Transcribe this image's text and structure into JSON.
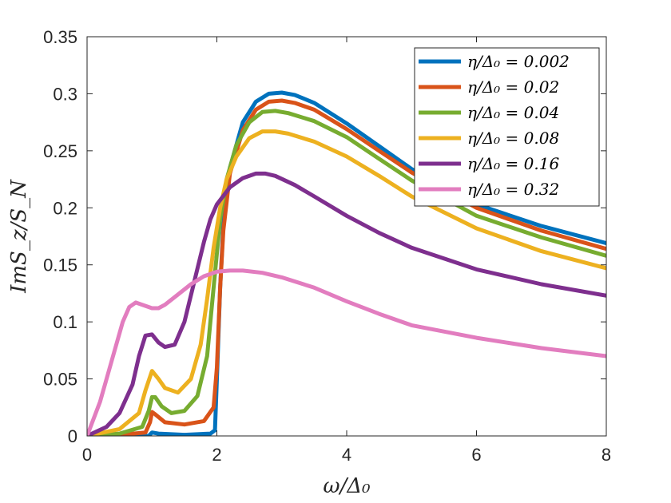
{
  "chart_data": {
    "type": "line",
    "title": "",
    "xlabel": "ω/Δ₀",
    "ylabel": "ImS_z/S_N",
    "xlim": [
      0,
      8
    ],
    "ylim": [
      0,
      0.35
    ],
    "xticks": [
      0,
      2,
      4,
      6,
      8
    ],
    "xtick_labels": [
      "0",
      "2",
      "4",
      "6",
      "8"
    ],
    "yticks": [
      0,
      0.05,
      0.1,
      0.15,
      0.2,
      0.25,
      0.3,
      0.35
    ],
    "ytick_labels": [
      "0",
      "0.05",
      "0.1",
      "0.15",
      "0.2",
      "0.25",
      "0.3",
      "0.35"
    ],
    "grid": false,
    "legend_position": "top-right",
    "series": [
      {
        "name": "η/Δ₀ = 0.002",
        "color": "#0072BD",
        "x": [
          0,
          0.5,
          0.95,
          1.0,
          1.1,
          1.5,
          1.9,
          1.97,
          2.0,
          2.05,
          2.1,
          2.2,
          2.4,
          2.6,
          2.8,
          3.0,
          3.2,
          3.5,
          4.0,
          4.5,
          5.0,
          6.0,
          7.0,
          8.0
        ],
        "y": [
          0,
          0,
          0,
          0.003,
          0.002,
          0.001,
          0.002,
          0.005,
          0.05,
          0.13,
          0.185,
          0.235,
          0.275,
          0.293,
          0.3,
          0.301,
          0.299,
          0.292,
          0.274,
          0.254,
          0.234,
          0.203,
          0.184,
          0.169
        ]
      },
      {
        "name": "η/Δ₀ = 0.02",
        "color": "#D95319",
        "x": [
          0,
          0.5,
          0.9,
          0.97,
          1.0,
          1.05,
          1.2,
          1.5,
          1.8,
          1.95,
          2.0,
          2.05,
          2.1,
          2.2,
          2.4,
          2.6,
          2.8,
          3.0,
          3.2,
          3.5,
          4.0,
          4.5,
          5.0,
          6.0,
          7.0,
          8.0
        ],
        "y": [
          0,
          0.001,
          0.003,
          0.012,
          0.021,
          0.019,
          0.012,
          0.01,
          0.013,
          0.025,
          0.06,
          0.13,
          0.18,
          0.23,
          0.268,
          0.286,
          0.293,
          0.294,
          0.292,
          0.286,
          0.269,
          0.25,
          0.231,
          0.2,
          0.18,
          0.164
        ]
      },
      {
        "name": "η/Δ₀ = 0.04",
        "color": "#77AC30",
        "x": [
          0,
          0.5,
          0.85,
          0.95,
          1.0,
          1.05,
          1.15,
          1.3,
          1.5,
          1.7,
          1.85,
          1.95,
          2.05,
          2.15,
          2.3,
          2.5,
          2.7,
          2.9,
          3.1,
          3.5,
          4.0,
          4.5,
          5.0,
          6.0,
          7.0,
          8.0
        ],
        "y": [
          0,
          0.002,
          0.008,
          0.022,
          0.034,
          0.034,
          0.026,
          0.02,
          0.022,
          0.035,
          0.07,
          0.13,
          0.19,
          0.225,
          0.255,
          0.275,
          0.284,
          0.285,
          0.283,
          0.276,
          0.262,
          0.243,
          0.224,
          0.193,
          0.174,
          0.158
        ]
      },
      {
        "name": "η/Δ₀ = 0.08",
        "color": "#EDB120",
        "x": [
          0,
          0.5,
          0.8,
          0.9,
          1.0,
          1.1,
          1.2,
          1.4,
          1.6,
          1.75,
          1.85,
          1.95,
          2.05,
          2.15,
          2.3,
          2.5,
          2.7,
          2.9,
          3.1,
          3.5,
          4.0,
          4.5,
          5.0,
          6.0,
          7.0,
          8.0
        ],
        "y": [
          0,
          0.006,
          0.02,
          0.04,
          0.057,
          0.05,
          0.042,
          0.038,
          0.05,
          0.08,
          0.12,
          0.165,
          0.2,
          0.225,
          0.245,
          0.261,
          0.267,
          0.267,
          0.265,
          0.258,
          0.245,
          0.228,
          0.21,
          0.182,
          0.162,
          0.147
        ]
      },
      {
        "name": "η/Δ₀ = 0.16",
        "color": "#7E2F8E",
        "x": [
          0,
          0.3,
          0.5,
          0.7,
          0.8,
          0.9,
          1.0,
          1.1,
          1.2,
          1.35,
          1.5,
          1.65,
          1.8,
          1.9,
          2.0,
          2.2,
          2.4,
          2.6,
          2.75,
          2.9,
          3.2,
          3.5,
          4.0,
          4.5,
          5.0,
          6.0,
          7.0,
          8.0
        ],
        "y": [
          0,
          0.008,
          0.02,
          0.045,
          0.07,
          0.088,
          0.089,
          0.082,
          0.078,
          0.08,
          0.1,
          0.135,
          0.17,
          0.19,
          0.203,
          0.218,
          0.226,
          0.23,
          0.23,
          0.228,
          0.22,
          0.21,
          0.193,
          0.178,
          0.165,
          0.146,
          0.133,
          0.123
        ]
      },
      {
        "name": "η/Δ₀ = 0.32",
        "color": "#E27DBF",
        "x": [
          0,
          0.2,
          0.4,
          0.55,
          0.65,
          0.75,
          0.85,
          1.0,
          1.1,
          1.2,
          1.4,
          1.6,
          1.8,
          2.0,
          2.2,
          2.4,
          2.7,
          3.0,
          3.5,
          4.0,
          4.5,
          5.0,
          6.0,
          7.0,
          8.0
        ],
        "y": [
          0,
          0.03,
          0.07,
          0.1,
          0.113,
          0.117,
          0.115,
          0.112,
          0.112,
          0.115,
          0.124,
          0.133,
          0.14,
          0.144,
          0.145,
          0.145,
          0.143,
          0.139,
          0.13,
          0.118,
          0.107,
          0.097,
          0.086,
          0.077,
          0.07
        ]
      }
    ]
  }
}
